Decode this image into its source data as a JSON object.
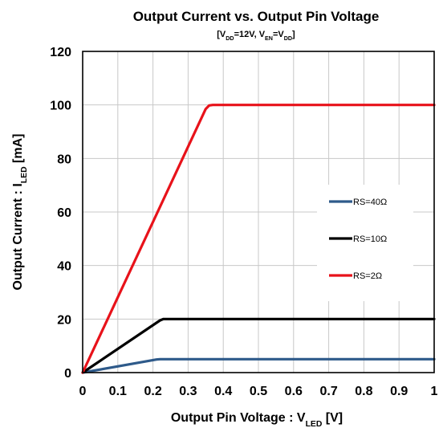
{
  "chart_data": {
    "type": "line",
    "title": "Output Current vs. Output Pin Voltage",
    "subtitle": {
      "parts": [
        {
          "text": "[V",
          "sub": false
        },
        {
          "text": "DD",
          "sub": true
        },
        {
          "text": "=12V, V",
          "sub": false
        },
        {
          "text": "EN",
          "sub": true
        },
        {
          "text": "=V",
          "sub": false
        },
        {
          "text": "DD",
          "sub": true
        },
        {
          "text": "]",
          "sub": false
        }
      ]
    },
    "xlabel": {
      "parts": [
        {
          "text": "Output Pin Voltage : V",
          "sub": false
        },
        {
          "text": "LED",
          "sub": true
        },
        {
          "text": " [V]",
          "sub": false
        }
      ]
    },
    "ylabel": {
      "parts": [
        {
          "text": "Output Current : I",
          "sub": false
        },
        {
          "text": "LED",
          "sub": true
        },
        {
          "text": " [mA]",
          "sub": false
        }
      ]
    },
    "xlim": [
      0,
      1
    ],
    "ylim": [
      0,
      120
    ],
    "xticks": [
      0,
      0.1,
      0.2,
      0.3,
      0.4,
      0.5,
      0.6,
      0.7,
      0.8,
      0.9,
      1
    ],
    "xtick_labels": [
      "0",
      "0.1",
      "0.2",
      "0.3",
      "0.4",
      "0.5",
      "0.6",
      "0.7",
      "0.8",
      "0.9",
      "1"
    ],
    "yticks": [
      0,
      20,
      40,
      60,
      80,
      100,
      120
    ],
    "ytick_labels": [
      "0",
      "20",
      "40",
      "60",
      "80",
      "100",
      "120"
    ],
    "grid": true,
    "legend_position": "right",
    "series": [
      {
        "name": "RS=40Ω",
        "color": "#2e5a8a",
        "x": [
          0,
          0.21,
          0.22,
          0.23,
          1.0
        ],
        "y": [
          0,
          4.9,
          5.0,
          5.0,
          5.0
        ]
      },
      {
        "name": "RS=10Ω",
        "color": "#000000",
        "x": [
          0,
          0.22,
          0.23,
          0.24,
          1.0
        ],
        "y": [
          0,
          19.5,
          20.0,
          20.0,
          20.0
        ]
      },
      {
        "name": "RS=2Ω",
        "color": "#e8121a",
        "x": [
          0,
          0.35,
          0.36,
          0.37,
          1.0
        ],
        "y": [
          0,
          98.5,
          99.8,
          100,
          100
        ]
      }
    ]
  }
}
